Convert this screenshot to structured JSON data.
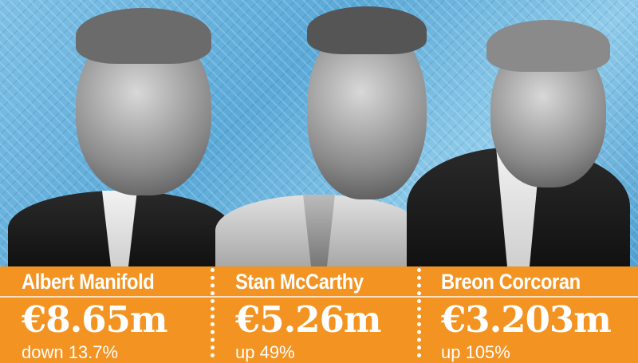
{
  "people": [
    {
      "name": "Albert Manifold",
      "amount": "€8.65m",
      "change": "down 13.7%"
    },
    {
      "name": "Stan McCarthy",
      "amount": "€5.26m",
      "change": "up 49%"
    },
    {
      "name": "Breon Corcoran",
      "amount": "€3.203m",
      "change": "up 105%"
    }
  ],
  "colors": {
    "banner": "#f39322",
    "background": "#6db5e0",
    "text": "#ffffff"
  }
}
